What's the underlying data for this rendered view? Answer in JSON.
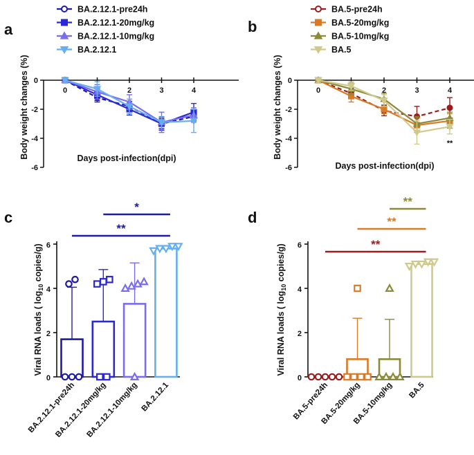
{
  "colors": {
    "BA.2.12.1-pre24h": "#1e1aa8",
    "BA.2.12.1-20mg/kg": "#2a28d6",
    "BA.2.12.1-10mg/kg": "#7a6cf0",
    "BA.2.12.1": "#66aef0",
    "BA.5-pre24h": "#9b1c1c",
    "BA.5-20mg/kg": "#d97a26",
    "BA.5-10mg/kg": "#8a8a38",
    "BA.5": "#cfc98c",
    "axis": "#111111"
  },
  "chart_data": [
    {
      "panel": "a",
      "type": "line",
      "xlabel": "Days post-infection(dpi)",
      "ylabel": "Body weight changes (%)",
      "x": [
        0,
        1,
        2,
        3,
        4
      ],
      "xticks": [
        "0",
        "2",
        "3",
        "4"
      ],
      "yticks": [
        "0",
        "-2",
        "-4",
        "-6"
      ],
      "ylim": [
        -6,
        0
      ],
      "legend": [
        "BA.2.12.1-pre24h",
        "BA.2.12.1-20mg/kg",
        "BA.2.12.1-10mg/kg",
        "BA.2.12.1"
      ],
      "series": [
        {
          "name": "BA.2.12.1-pre24h",
          "marker": "circle",
          "dashed": true,
          "values": [
            0,
            -1.2,
            -1.8,
            -3.0,
            -2.5
          ],
          "err": [
            0.15,
            0.3,
            0.35,
            0.35,
            0.3
          ]
        },
        {
          "name": "BA.2.12.1-20mg/kg",
          "marker": "square",
          "dashed": false,
          "values": [
            0,
            -1.0,
            -2.0,
            -3.0,
            -2.2
          ],
          "err": [
            0.15,
            0.4,
            0.4,
            0.45,
            0.6
          ]
        },
        {
          "name": "BA.2.12.1-10mg/kg",
          "marker": "triangle",
          "dashed": false,
          "values": [
            0,
            -0.8,
            -1.5,
            -2.9,
            -2.4
          ],
          "err": [
            0.15,
            0.5,
            0.5,
            0.7,
            0.5
          ]
        },
        {
          "name": "BA.2.12.1",
          "marker": "triangle-down",
          "dashed": false,
          "values": [
            0,
            -0.6,
            -1.8,
            -2.9,
            -2.8
          ],
          "err": [
            0.15,
            0.5,
            0.5,
            0.4,
            0.8
          ]
        }
      ]
    },
    {
      "panel": "b",
      "type": "line",
      "xlabel": "Days post-infection(dpi)",
      "ylabel": "Body weight changes (%)",
      "x": [
        0,
        1,
        2,
        3,
        4
      ],
      "xticks": [
        "0",
        "2",
        "3",
        "4"
      ],
      "yticks": [
        "0",
        "-2",
        "-4",
        "-6"
      ],
      "ylim": [
        -6,
        0
      ],
      "legend": [
        "BA.5-pre24h",
        "BA.5-20mg/kg",
        "BA.5-10mg/kg",
        "BA.5"
      ],
      "annotation": {
        "text": "**",
        "x": 4,
        "y": -4.3
      },
      "series": [
        {
          "name": "BA.5-pre24h",
          "marker": "circle",
          "dashed": true,
          "values": [
            0,
            -0.9,
            -2.1,
            -2.5,
            -1.9
          ],
          "err": [
            0.15,
            0.35,
            0.35,
            0.7,
            0.7
          ]
        },
        {
          "name": "BA.5-20mg/kg",
          "marker": "square",
          "dashed": false,
          "values": [
            0,
            -1.1,
            -2.0,
            -3.1,
            -2.8
          ],
          "err": [
            0.15,
            0.4,
            0.3,
            0.5,
            0.5
          ]
        },
        {
          "name": "BA.5-10mg/kg",
          "marker": "triangle",
          "dashed": false,
          "values": [
            0,
            -0.6,
            -1.3,
            -3.0,
            -2.6
          ],
          "err": [
            0.15,
            0.4,
            0.4,
            0.5,
            0.4
          ]
        },
        {
          "name": "BA.5",
          "marker": "triangle-down",
          "dashed": false,
          "values": [
            0,
            -0.4,
            -1.4,
            -3.6,
            -3.2
          ],
          "err": [
            0.15,
            0.3,
            0.4,
            0.8,
            0.5
          ]
        }
      ]
    },
    {
      "panel": "c",
      "type": "bar",
      "ylabel": "Viral RNA loads ( log10 copies/g)",
      "yticks": [
        "0",
        "2",
        "4",
        "6"
      ],
      "ylim": [
        0,
        6
      ],
      "categories": [
        "BA.2.12.1-pre24h",
        "BA.2.12.1-20mg/kg",
        "BA.2.12.1-10mg/kg",
        "BA.2.12.1"
      ],
      "values": [
        1.7,
        2.5,
        3.3,
        5.8
      ],
      "err": [
        2.35,
        2.35,
        1.85,
        0.1
      ],
      "markers": [
        "circle",
        "square",
        "triangle",
        "triangle-down"
      ],
      "points": [
        [
          0,
          0,
          0,
          4.2,
          4.4
        ],
        [
          0,
          0,
          4.2,
          4.3,
          4.4
        ],
        [
          0,
          4.0,
          4.1,
          4.2,
          4.3
        ],
        [
          5.7,
          5.8,
          5.8,
          5.9,
          5.9
        ]
      ],
      "significance": [
        {
          "text": "*",
          "from": 1,
          "to": 3,
          "color": "#1e1aa8"
        },
        {
          "text": "**",
          "from": 0,
          "to": 3,
          "color": "#1e1aa8"
        }
      ]
    },
    {
      "panel": "d",
      "type": "bar",
      "ylabel": "Viral RNA loads ( log10 copies/g)",
      "yticks": [
        "0",
        "2",
        "4",
        "6"
      ],
      "ylim": [
        0,
        6
      ],
      "categories": [
        "BA.5-pre24h",
        "BA.5-20mg/kg",
        "BA.5-10mg/kg",
        "BA.5"
      ],
      "values": [
        0,
        0.8,
        0.8,
        5.1
      ],
      "err": [
        0,
        1.85,
        1.8,
        0.12
      ],
      "markers": [
        "circle",
        "square",
        "triangle",
        "triangle-down"
      ],
      "points": [
        [
          0,
          0,
          0,
          0,
          0
        ],
        [
          0,
          0,
          0,
          0,
          4.0
        ],
        [
          0,
          0,
          0,
          0,
          4.0
        ],
        [
          5.0,
          5.1,
          5.1,
          5.2,
          5.2
        ]
      ],
      "significance": [
        {
          "text": "**",
          "from": 2,
          "to": 3,
          "color": "#8a8a38"
        },
        {
          "text": "**",
          "from": 1,
          "to": 3,
          "color": "#d97a26"
        },
        {
          "text": "**",
          "from": 0,
          "to": 3,
          "color": "#9b1c1c"
        }
      ]
    }
  ]
}
